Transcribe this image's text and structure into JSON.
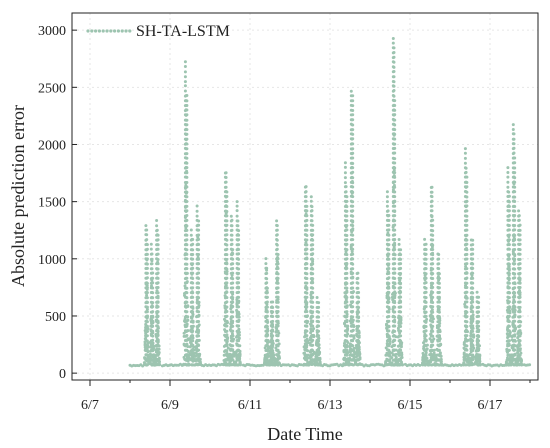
{
  "chart_data": {
    "type": "scatter",
    "title": "",
    "xlabel": "Date Time",
    "ylabel": "Absolute prediction error",
    "x_tick_labels": [
      "6/7",
      "6/9",
      "6/11",
      "6/13",
      "6/15",
      "6/17"
    ],
    "x_tick_values": [
      7,
      9,
      11,
      13,
      15,
      17
    ],
    "y_ticks": [
      0,
      500,
      1000,
      1500,
      2000,
      2500,
      3000
    ],
    "xlim": [
      6.55,
      18.2
    ],
    "ylim": [
      -60,
      3150
    ],
    "grid": true,
    "legend_position": "top-left",
    "baseline_error": 70,
    "daily_spikes": [
      {
        "day_center": 8.55,
        "spread": 0.2,
        "peaks": [
          1320,
          1150,
          1330
        ]
      },
      {
        "day_center": 9.55,
        "spread": 0.22,
        "peaks": [
          2720,
          1250,
          1460
        ]
      },
      {
        "day_center": 10.55,
        "spread": 0.22,
        "peaks": [
          1790,
          1400,
          1520
        ]
      },
      {
        "day_center": 11.55,
        "spread": 0.2,
        "peaks": [
          1020,
          640,
          1360
        ]
      },
      {
        "day_center": 12.55,
        "spread": 0.22,
        "peaks": [
          1650,
          1580,
          680
        ]
      },
      {
        "day_center": 13.55,
        "spread": 0.22,
        "peaks": [
          1860,
          2470,
          900
        ]
      },
      {
        "day_center": 14.6,
        "spread": 0.22,
        "peaks": [
          1590,
          2950,
          1200
        ]
      },
      {
        "day_center": 15.55,
        "spread": 0.25,
        "peaks": [
          1170,
          1660,
          1050
        ]
      },
      {
        "day_center": 16.55,
        "spread": 0.22,
        "peaks": [
          2000,
          1180,
          720
        ]
      },
      {
        "day_center": 17.6,
        "spread": 0.2,
        "peaks": [
          1800,
          2190,
          1420
        ]
      }
    ],
    "series": [
      {
        "name": "SH-TA-LSTM",
        "color": "#9dc4b0",
        "marker": "dot"
      }
    ]
  },
  "legend": {
    "label": "SH-TA-LSTM",
    "marker_icon": "dotted-line-icon"
  }
}
